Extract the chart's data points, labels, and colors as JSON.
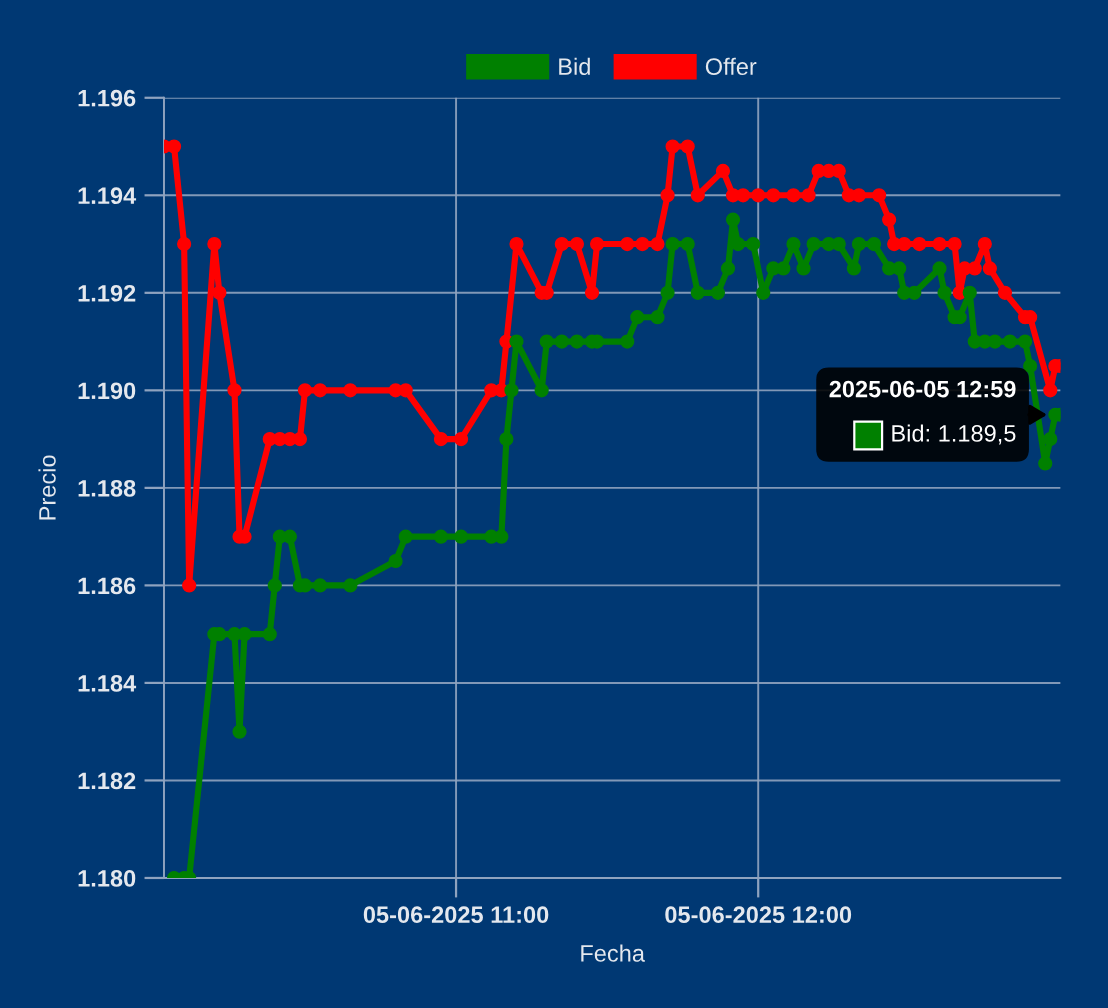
{
  "chart_data": {
    "type": "line",
    "xlabel": "Fecha",
    "ylabel": "Precio",
    "legend": "top",
    "grid": true,
    "marker": "circle",
    "line_style": "solid",
    "xlim": [
      "2025-06-05T10:02",
      "2025-06-05T13:00"
    ],
    "xticks": [
      {
        "value": "2025-06-05T11:00",
        "label": "05-06-2025 11:00"
      },
      {
        "value": "2025-06-05T12:00",
        "label": "05-06-2025 12:00"
      }
    ],
    "ylim": [
      1.18,
      1.196
    ],
    "yticks": [
      {
        "value": 1.18,
        "label": "1.180"
      },
      1.182,
      1.184,
      1.186,
      1.188,
      {
        "value": 1.19,
        "label": "1.190"
      },
      1.192,
      1.194,
      1.196
    ],
    "annotations": [
      {
        "text": "2025-06-05 12:59",
        "x": "2025-06-05T12:59",
        "y": 1.1895
      },
      {
        "text": "Bid: 1.189,5",
        "x": "2025-06-05T12:59",
        "y": 1.1895
      }
    ],
    "series": [
      {
        "name": "Bid",
        "color": "#008000",
        "x": [
          "2025-06-05T10:04",
          "2025-06-05T10:06",
          "2025-06-05T10:07",
          "2025-06-05T10:12",
          "2025-06-05T10:13",
          "2025-06-05T10:16",
          "2025-06-05T10:17",
          "2025-06-05T10:18",
          "2025-06-05T10:23",
          "2025-06-05T10:24",
          "2025-06-05T10:25",
          "2025-06-05T10:27",
          "2025-06-05T10:29",
          "2025-06-05T10:30",
          "2025-06-05T10:33",
          "2025-06-05T10:39",
          "2025-06-05T10:48",
          "2025-06-05T10:50",
          "2025-06-05T10:57",
          "2025-06-05T11:01",
          "2025-06-05T11:07",
          "2025-06-05T11:09",
          "2025-06-05T11:10",
          "2025-06-05T11:11",
          "2025-06-05T11:12",
          "2025-06-05T11:17",
          "2025-06-05T11:18",
          "2025-06-05T11:21",
          "2025-06-05T11:24",
          "2025-06-05T11:27",
          "2025-06-05T11:28",
          "2025-06-05T11:34",
          "2025-06-05T11:36",
          "2025-06-05T11:40",
          "2025-06-05T11:42",
          "2025-06-05T11:43",
          "2025-06-05T11:46",
          "2025-06-05T11:48",
          "2025-06-05T11:52",
          "2025-06-05T11:54",
          "2025-06-05T11:55",
          "2025-06-05T11:56",
          "2025-06-05T11:59",
          "2025-06-05T12:01",
          "2025-06-05T12:03",
          "2025-06-05T12:05",
          "2025-06-05T12:07",
          "2025-06-05T12:09",
          "2025-06-05T12:11",
          "2025-06-05T12:14",
          "2025-06-05T12:16",
          "2025-06-05T12:19",
          "2025-06-05T12:20",
          "2025-06-05T12:23",
          "2025-06-05T12:26",
          "2025-06-05T12:28",
          "2025-06-05T12:29",
          "2025-06-05T12:31",
          "2025-06-05T12:36",
          "2025-06-05T12:37",
          "2025-06-05T12:39",
          "2025-06-05T12:40",
          "2025-06-05T12:42",
          "2025-06-05T12:43",
          "2025-06-05T12:45",
          "2025-06-05T12:47",
          "2025-06-05T12:50",
          "2025-06-05T12:53",
          "2025-06-05T12:54",
          "2025-06-05T12:57",
          "2025-06-05T12:58",
          "2025-06-05T12:59",
          "2025-06-05T13:00"
        ],
        "values": [
          1.18,
          1.18,
          1.18,
          1.185,
          1.185,
          1.185,
          1.183,
          1.185,
          1.185,
          1.186,
          1.187,
          1.187,
          1.186,
          1.186,
          1.186,
          1.186,
          1.1865,
          1.187,
          1.187,
          1.187,
          1.187,
          1.187,
          1.189,
          1.19,
          1.191,
          1.19,
          1.191,
          1.191,
          1.191,
          1.191,
          1.191,
          1.191,
          1.1915,
          1.1915,
          1.192,
          1.193,
          1.193,
          1.192,
          1.192,
          1.1925,
          1.1935,
          1.193,
          1.193,
          1.192,
          1.1925,
          1.1925,
          1.193,
          1.1925,
          1.193,
          1.193,
          1.193,
          1.1925,
          1.193,
          1.193,
          1.1925,
          1.1925,
          1.192,
          1.192,
          1.1925,
          1.192,
          1.1915,
          1.1915,
          1.192,
          1.191,
          1.191,
          1.191,
          1.191,
          1.191,
          1.1905,
          1.1885,
          1.189,
          1.1895,
          1.1895
        ]
      },
      {
        "name": "Offer",
        "color": "#ff0000",
        "x": [
          "2025-06-05T10:02",
          "2025-06-05T10:04",
          "2025-06-05T10:06",
          "2025-06-05T10:07",
          "2025-06-05T10:12",
          "2025-06-05T10:13",
          "2025-06-05T10:16",
          "2025-06-05T10:17",
          "2025-06-05T10:18",
          "2025-06-05T10:23",
          "2025-06-05T10:25",
          "2025-06-05T10:27",
          "2025-06-05T10:29",
          "2025-06-05T10:30",
          "2025-06-05T10:33",
          "2025-06-05T10:39",
          "2025-06-05T10:48",
          "2025-06-05T10:50",
          "2025-06-05T10:57",
          "2025-06-05T11:01",
          "2025-06-05T11:07",
          "2025-06-05T11:09",
          "2025-06-05T11:10",
          "2025-06-05T11:12",
          "2025-06-05T11:17",
          "2025-06-05T11:18",
          "2025-06-05T11:21",
          "2025-06-05T11:24",
          "2025-06-05T11:27",
          "2025-06-05T11:28",
          "2025-06-05T11:34",
          "2025-06-05T11:37",
          "2025-06-05T11:40",
          "2025-06-05T11:42",
          "2025-06-05T11:43",
          "2025-06-05T11:46",
          "2025-06-05T11:48",
          "2025-06-05T11:53",
          "2025-06-05T11:55",
          "2025-06-05T11:57",
          "2025-06-05T12:00",
          "2025-06-05T12:03",
          "2025-06-05T12:07",
          "2025-06-05T12:10",
          "2025-06-05T12:12",
          "2025-06-05T12:14",
          "2025-06-05T12:16",
          "2025-06-05T12:18",
          "2025-06-05T12:20",
          "2025-06-05T12:24",
          "2025-06-05T12:26",
          "2025-06-05T12:27",
          "2025-06-05T12:29",
          "2025-06-05T12:32",
          "2025-06-05T12:36",
          "2025-06-05T12:39",
          "2025-06-05T12:40",
          "2025-06-05T12:41",
          "2025-06-05T12:43",
          "2025-06-05T12:45",
          "2025-06-05T12:46",
          "2025-06-05T12:49",
          "2025-06-05T12:53",
          "2025-06-05T12:54",
          "2025-06-05T12:58",
          "2025-06-05T12:59",
          "2025-06-05T13:00"
        ],
        "values": [
          1.195,
          1.195,
          1.193,
          1.186,
          1.193,
          1.192,
          1.19,
          1.187,
          1.187,
          1.189,
          1.189,
          1.189,
          1.189,
          1.19,
          1.19,
          1.19,
          1.19,
          1.19,
          1.189,
          1.189,
          1.19,
          1.19,
          1.191,
          1.193,
          1.192,
          1.192,
          1.193,
          1.193,
          1.192,
          1.193,
          1.193,
          1.193,
          1.193,
          1.194,
          1.195,
          1.195,
          1.194,
          1.1945,
          1.194,
          1.194,
          1.194,
          1.194,
          1.194,
          1.194,
          1.1945,
          1.1945,
          1.1945,
          1.194,
          1.194,
          1.194,
          1.1935,
          1.193,
          1.193,
          1.193,
          1.193,
          1.193,
          1.192,
          1.1925,
          1.1925,
          1.193,
          1.1925,
          1.192,
          1.1915,
          1.1915,
          1.19,
          1.1905,
          1.1905
        ]
      }
    ]
  }
}
